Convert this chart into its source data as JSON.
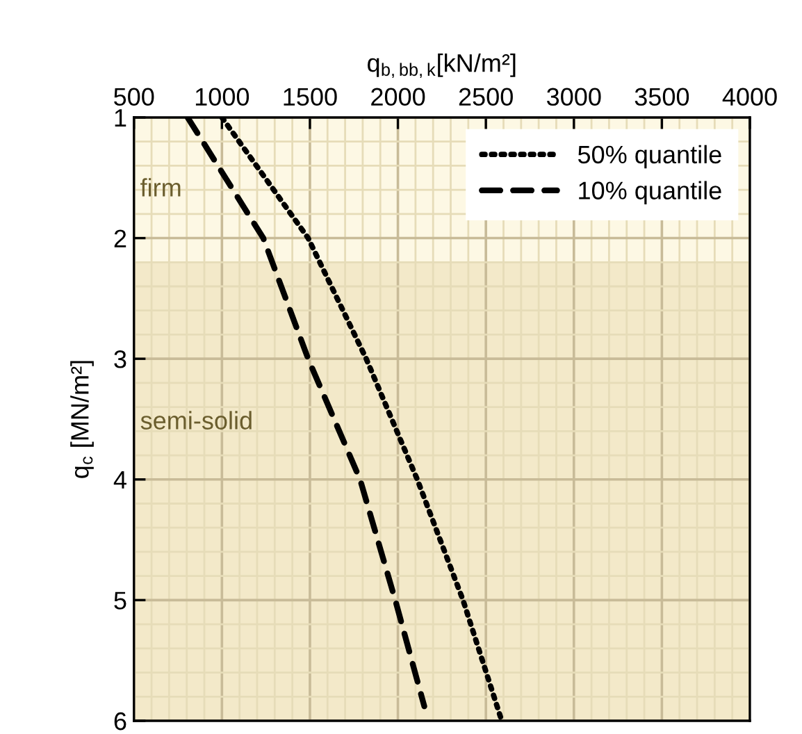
{
  "chart_data": {
    "type": "line",
    "xlabel": "q$_{b,bb,k}$[kN/m²]",
    "ylabel": "q$_{c}$ [MN/m²]",
    "xlim": [
      500,
      4000
    ],
    "xticks": [
      500,
      {
        "value": 600,
        "label": null
      },
      {
        "value": 700,
        "label": null
      },
      {
        "value": 800,
        "label": null
      },
      {
        "value": 900,
        "label": null
      },
      1000,
      {
        "value": 1100,
        "label": null
      },
      {
        "value": 1200,
        "label": null
      },
      {
        "value": 1300,
        "label": null
      },
      {
        "value": 1400,
        "label": null
      },
      1500,
      {
        "value": 1600,
        "label": null
      },
      {
        "value": 1700,
        "label": null
      },
      {
        "value": 1800,
        "label": null
      },
      {
        "value": 1900,
        "label": null
      },
      2000,
      {
        "value": 2100,
        "label": null
      },
      {
        "value": 2200,
        "label": null
      },
      {
        "value": 2300,
        "label": null
      },
      {
        "value": 2400,
        "label": null
      },
      2500,
      {
        "value": 2600,
        "label": null
      },
      {
        "value": 2700,
        "label": null
      },
      {
        "value": 2800,
        "label": null
      },
      {
        "value": 2900,
        "label": null
      },
      3000,
      {
        "value": 3100,
        "label": null
      },
      {
        "value": 3200,
        "label": null
      },
      {
        "value": 3300,
        "label": null
      },
      {
        "value": 3400,
        "label": null
      },
      3500,
      {
        "value": 3600,
        "label": null
      },
      {
        "value": 3700,
        "label": null
      },
      {
        "value": 3800,
        "label": null
      },
      {
        "value": 3900,
        "label": null
      },
      4000
    ],
    "ylim": [
      6,
      1
    ],
    "yticks": [
      1,
      {
        "value": 1.2,
        "label": null
      },
      {
        "value": 1.4,
        "label": null
      },
      {
        "value": 1.6,
        "label": null
      },
      {
        "value": 1.8,
        "label": null
      },
      2,
      {
        "value": 2.2,
        "label": null
      },
      {
        "value": 2.4,
        "label": null
      },
      {
        "value": 2.6,
        "label": null
      },
      {
        "value": 2.8,
        "label": null
      },
      3,
      {
        "value": 3.2,
        "label": null
      },
      {
        "value": 3.4,
        "label": null
      },
      {
        "value": 3.6,
        "label": null
      },
      {
        "value": 3.8,
        "label": null
      },
      4,
      {
        "value": 4.2,
        "label": null
      },
      {
        "value": 4.4,
        "label": null
      },
      {
        "value": 4.6,
        "label": null
      },
      {
        "value": 4.8,
        "label": null
      },
      5,
      {
        "value": 5.2,
        "label": null
      },
      {
        "value": 5.4,
        "label": null
      },
      {
        "value": 5.6,
        "label": null
      },
      {
        "value": 5.8,
        "label": null
      },
      6
    ],
    "grid": true,
    "legend": "top right",
    "bands": [
      {
        "axis": "y",
        "from": 1,
        "to": 2.2,
        "label": "firm",
        "color": "#fdf8e4"
      },
      {
        "axis": "y",
        "from": 2.2,
        "to": 6,
        "label": "semi-solid",
        "color": "#f3e9c9"
      }
    ],
    "series": [
      {
        "name": "50% quantile",
        "color": "#000000",
        "line_style": "dotted",
        "x": [
          1000,
          1490,
          1820,
          2110,
          2370,
          2590
        ],
        "values": [
          1,
          2,
          3,
          4,
          5,
          6
        ]
      },
      {
        "name": "10% quantile",
        "color": "#000000",
        "line_style": "dashed",
        "x": [
          805,
          1235,
          1490,
          1785,
          1985,
          2150
        ],
        "values": [
          1,
          2,
          3,
          4,
          5,
          5.88
        ]
      }
    ]
  }
}
